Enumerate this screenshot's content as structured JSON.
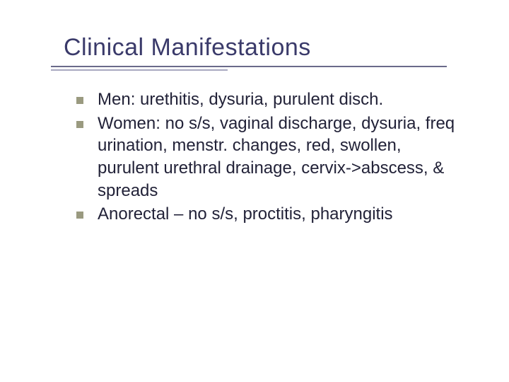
{
  "slide": {
    "title": "Clinical Manifestations",
    "title_color": "#3a3a6a",
    "title_fontsize": 34,
    "body_fontsize": 24,
    "body_color": "#222238",
    "bullet_color": "#9a9a80",
    "rule_color_long": "#6a6a8a",
    "rule_color_short": "#a8a8c0",
    "rule_long_width": 560,
    "rule_short_width": 250,
    "background_color": "#ffffff",
    "bullets": [
      "Men: urethitis, dysuria, purulent disch.",
      "Women: no s/s, vaginal discharge, dysuria, freq urination, menstr. changes, red, swollen, purulent urethral drainage, cervix->abscess, & spreads",
      "Anorectal – no s/s, proctitis, pharyngitis"
    ]
  }
}
